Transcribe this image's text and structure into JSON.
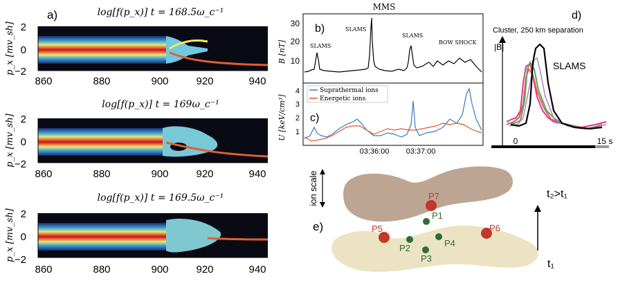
{
  "panel_a": {
    "label": "a)",
    "ylabel": "p_x [mv_sh]",
    "xticks": [
      "860",
      "880",
      "900",
      "920",
      "940"
    ],
    "yticks": [
      "2",
      "0",
      "−2"
    ],
    "titles": [
      "log[f(p_x)] t = 168.5ω_c⁻¹",
      "log[f(p_x)] t = 169ω_c⁻¹",
      "log[f(p_x)] t = 169.5ω_c⁻¹"
    ]
  },
  "panel_b": {
    "label": "b)",
    "title": "MMS",
    "ylabel": "B [nT]",
    "yticks": [
      "30",
      "20",
      "10"
    ],
    "annotations": [
      "SLAMS",
      "SLAMS",
      "SLAMS",
      "BOW SHOCK"
    ]
  },
  "panel_c": {
    "label": "c)",
    "ylabel": "U [keV/cm³]",
    "yticks": [
      "4",
      "3",
      "2",
      "1"
    ],
    "xticks": [
      "03:36:00",
      "03:37:00"
    ],
    "legend": [
      "Suprathermal ions",
      "Energetic ions"
    ],
    "colors": {
      "suprathermal": "#3a78c2",
      "energetic": "#e0592a"
    }
  },
  "panel_d": {
    "label": "d)",
    "title": "Cluster, 250 km separation",
    "ylabel": "|B|",
    "annotation": "SLAMS",
    "xticks": [
      "0",
      "15 s"
    ],
    "colors": [
      "#000000",
      "#e0368a",
      "#ef5560",
      "#4caf50",
      "#b07fd0"
    ]
  },
  "panel_e": {
    "label": "e)",
    "axis_label": "ion scale",
    "time_late": "t₂>t₁",
    "time_early": "t₁",
    "points_red": [
      "P7",
      "P5",
      "P6"
    ],
    "points_green": [
      "P1",
      "P2",
      "P3",
      "P4"
    ],
    "colors": {
      "upper_blob": "#bda593",
      "lower_blob": "#ece3c4",
      "red_point": "#c0392b",
      "green_point": "#2e6b3a"
    }
  }
}
